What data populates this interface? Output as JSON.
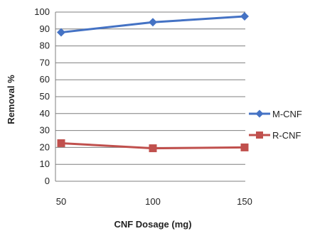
{
  "chart_data": {
    "type": "line",
    "title": "",
    "xlabel": "CNF Dosage (mg)",
    "ylabel": "Removal %",
    "categories": [
      "50",
      "100",
      "150"
    ],
    "ylim": [
      0,
      100
    ],
    "yticks": [
      "0",
      "10",
      "20",
      "30",
      "40",
      "50",
      "60",
      "70",
      "80",
      "90",
      "100"
    ],
    "grid": true,
    "legend_position": "right",
    "series": [
      {
        "name": "M-CNF",
        "values": [
          88,
          94,
          97.5
        ],
        "color": "#4472c4",
        "marker": "diamond"
      },
      {
        "name": "R-CNF",
        "values": [
          22.5,
          19.5,
          20
        ],
        "color": "#c0504d",
        "marker": "square"
      }
    ]
  }
}
